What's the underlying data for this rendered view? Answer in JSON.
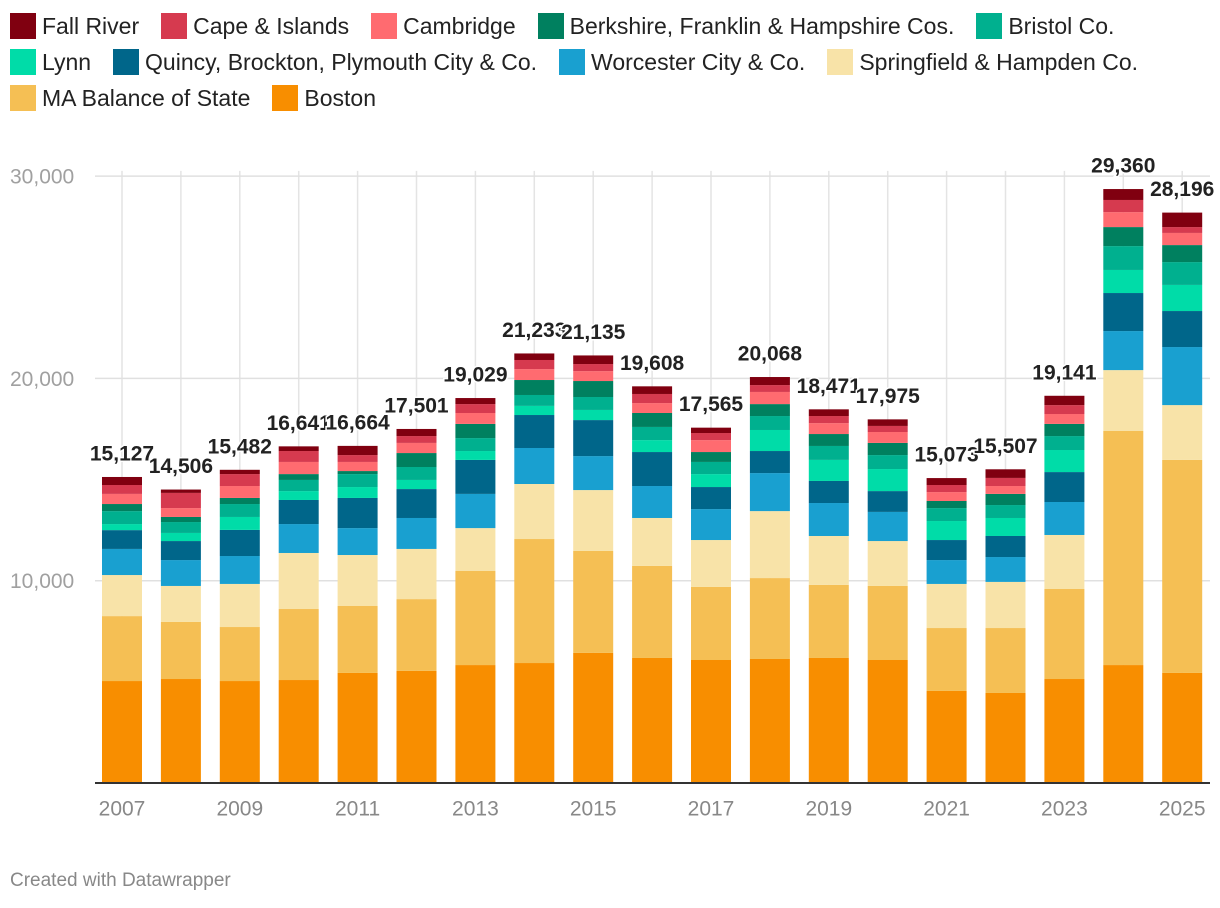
{
  "chart_data": {
    "type": "stacked_bar",
    "categories": [
      "2007",
      null,
      "2009",
      null,
      "2011",
      null,
      "2013",
      null,
      "2015",
      null,
      "2017",
      null,
      "2019",
      null,
      "2021",
      null,
      "2023",
      null,
      "2025"
    ],
    "series": [
      {
        "name": "Boston",
        "color": "#f88e00",
        "values": [
          5040,
          5140,
          5040,
          5090,
          5440,
          5540,
          5830,
          5930,
          6430,
          6180,
          6080,
          6130,
          6180,
          6080,
          4550,
          4450,
          5140,
          5830,
          5440
        ]
      },
      {
        "name": "MA Balance of State",
        "color": "#f5bf54",
        "values": [
          3210,
          2820,
          2670,
          3510,
          3310,
          3550,
          4650,
          6130,
          5040,
          4550,
          3610,
          4000,
          3610,
          3660,
          3110,
          3210,
          4450,
          11570,
          10530
        ]
      },
      {
        "name": "Springfield & Hampden Co.",
        "color": "#f8e3a8",
        "values": [
          2030,
          1780,
          2130,
          2770,
          2520,
          2480,
          2120,
          2720,
          3010,
          2370,
          2320,
          3310,
          2420,
          2220,
          2180,
          2280,
          2670,
          3010,
          2710
        ]
      },
      {
        "name": "Worcester City & Co.",
        "color": "#19a0d0",
        "values": [
          1290,
          1280,
          1380,
          1430,
          1330,
          1530,
          1690,
          1780,
          1680,
          1580,
          1530,
          1880,
          1630,
          1440,
          1180,
          1230,
          1630,
          1930,
          2870
        ]
      },
      {
        "name": "Quincy, Brockton, Plymouth City & Co.",
        "color": "#00668a",
        "values": [
          930,
          940,
          1290,
          1190,
          1490,
          1430,
          1680,
          1630,
          1780,
          1680,
          1090,
          1090,
          1090,
          1030,
          990,
          1040,
          1480,
          1880,
          1780
        ]
      },
      {
        "name": "Lynn",
        "color": "#00dca8",
        "values": [
          300,
          400,
          640,
          440,
          540,
          450,
          440,
          450,
          500,
          590,
          640,
          1040,
          1040,
          1090,
          940,
          890,
          1090,
          1140,
          1290
        ]
      },
      {
        "name": "Bristol Co.",
        "color": "#00b08f",
        "values": [
          640,
          540,
          640,
          550,
          640,
          640,
          640,
          540,
          640,
          650,
          600,
          690,
          690,
          690,
          640,
          640,
          690,
          1180,
          1130
        ]
      },
      {
        "name": "Berkshire, Franklin & Hampshire Cos.",
        "color": "#00805f",
        "values": [
          350,
          250,
          300,
          290,
          150,
          690,
          700,
          740,
          790,
          690,
          490,
          590,
          590,
          600,
          350,
          550,
          600,
          940,
          840
        ]
      },
      {
        "name": "Cambridge",
        "color": "#ff6b70",
        "values": [
          500,
          440,
          590,
          600,
          450,
          500,
          540,
          540,
          490,
          490,
          590,
          600,
          540,
          540,
          440,
          390,
          490,
          740,
          600
        ]
      },
      {
        "name": "Cape & Islands",
        "color": "#d63a4f",
        "values": [
          440,
          750,
          590,
          540,
          340,
          340,
          440,
          450,
          350,
          450,
          350,
          340,
          350,
          300,
          350,
          400,
          440,
          600,
          290
        ]
      },
      {
        "name": "Fall River",
        "color": "#800010",
        "values": [
          397,
          166,
          212,
          231,
          454,
          351,
          299,
          323,
          425,
          378,
          265,
          398,
          331,
          325,
          343,
          427,
          461,
          540,
          716
        ]
      }
    ],
    "totals": [
      15127,
      14506,
      15482,
      16641,
      16664,
      17501,
      19029,
      21233,
      21135,
      19608,
      17565,
      20068,
      18471,
      17975,
      15073,
      15507,
      19141,
      29360,
      28196
    ],
    "total_labels": [
      "15,127",
      "14,506",
      "15,482",
      "16,641",
      "16,664",
      "17,501",
      "19,029",
      "21,233",
      "21,135",
      "19,608",
      "17,565",
      "20,068",
      "18,471",
      "17,975",
      "15,073",
      "15,507",
      "19,141",
      "29,360",
      "28,196"
    ],
    "ylim": [
      0,
      31000
    ],
    "yticks": [
      {
        "value": 10000,
        "label": "10,000"
      },
      {
        "value": 20000,
        "label": "20,000"
      },
      {
        "value": 30000,
        "label": "30,000"
      }
    ],
    "grid": true,
    "legend_order": [
      10,
      9,
      8,
      7,
      6,
      5,
      4,
      3,
      2,
      1,
      0
    ],
    "source": "Created with Datawrapper"
  }
}
